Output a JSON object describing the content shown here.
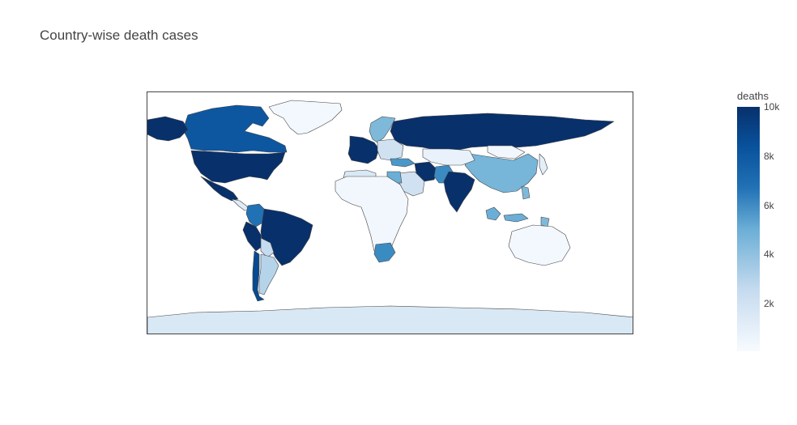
{
  "title": "Country-wise death cases",
  "chart_data": {
    "type": "choropleth",
    "title": "Country-wise death cases",
    "colorbar": {
      "title": "deaths",
      "ticks": [
        "10k",
        "8k",
        "6k",
        "4k",
        "2k"
      ],
      "range": [
        0,
        10000
      ],
      "colorscale": "Blues"
    },
    "regions": [
      {
        "name": "United States",
        "level": 10000
      },
      {
        "name": "Canada",
        "level": 8500
      },
      {
        "name": "Alaska",
        "level": 10000
      },
      {
        "name": "Greenland",
        "level": 200
      },
      {
        "name": "Mexico",
        "level": 10000
      },
      {
        "name": "Central America",
        "level": 1200
      },
      {
        "name": "Colombia",
        "level": 7500
      },
      {
        "name": "Brazil",
        "level": 10000
      },
      {
        "name": "Peru",
        "level": 10000
      },
      {
        "name": "Bolivia",
        "level": 2500
      },
      {
        "name": "Argentina",
        "level": 3000
      },
      {
        "name": "Chile",
        "level": 9000
      },
      {
        "name": "Russia",
        "level": 10000
      },
      {
        "name": "Western Europe",
        "level": 10000
      },
      {
        "name": "Scandinavia",
        "level": 4500
      },
      {
        "name": "Eastern Europe",
        "level": 2000
      },
      {
        "name": "Turkey",
        "level": 6000
      },
      {
        "name": "Iran",
        "level": 10000
      },
      {
        "name": "Pakistan",
        "level": 6500
      },
      {
        "name": "India",
        "level": 10000
      },
      {
        "name": "China",
        "level": 4700
      },
      {
        "name": "Mongolia",
        "level": 300
      },
      {
        "name": "Kazakhstan",
        "level": 700
      },
      {
        "name": "Saudi Arabia",
        "level": 2000
      },
      {
        "name": "Egypt",
        "level": 5000
      },
      {
        "name": "Algeria",
        "level": 1500
      },
      {
        "name": "Africa",
        "level": 300
      },
      {
        "name": "South Africa",
        "level": 6500
      },
      {
        "name": "Indonesia",
        "level": 5000
      },
      {
        "name": "Philippines",
        "level": 4500
      },
      {
        "name": "Japan",
        "level": 1000
      },
      {
        "name": "Australia",
        "level": 200
      },
      {
        "name": "Antarctica",
        "level": 1500
      }
    ]
  }
}
